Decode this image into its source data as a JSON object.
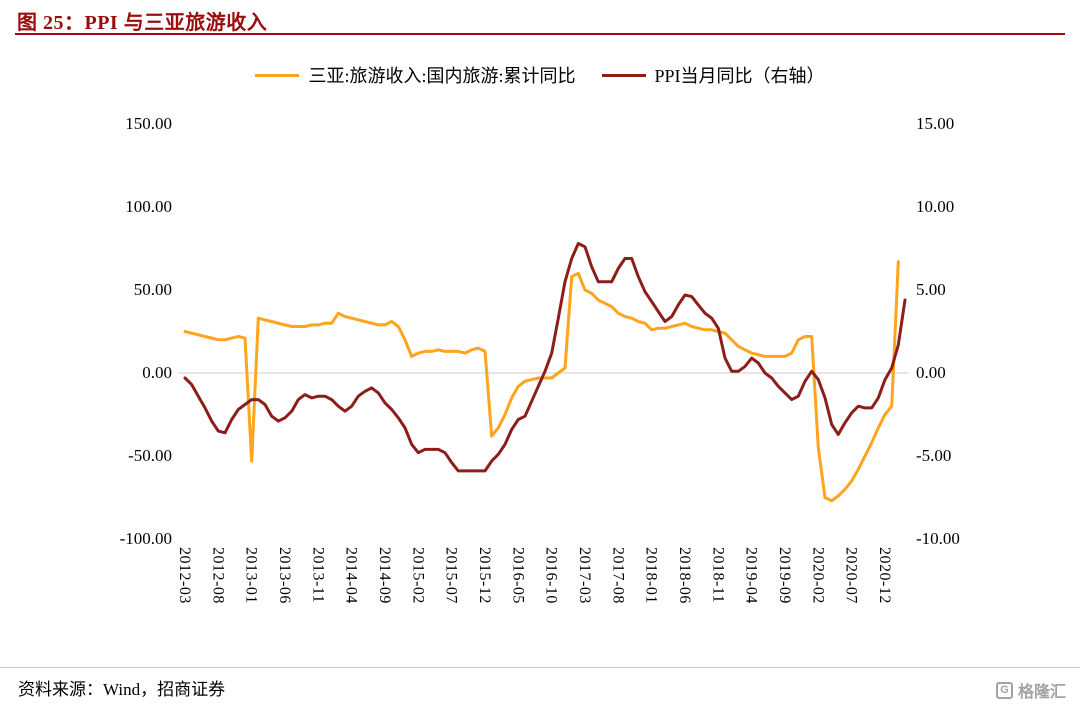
{
  "header": {
    "title": "图 25：PPI 与三亚旅游收入"
  },
  "colors": {
    "title_red": "#9B0D0D",
    "orange": "#FFA41C",
    "dark_red": "#8C1D18",
    "gridline": "#D6D6D6",
    "watermark_gray": "#A3A3A3"
  },
  "legend": [
    {
      "label": "三亚:旅游收入:国内旅游:累计同比",
      "color": "#FFA41C"
    },
    {
      "label": "PPI当月同比（右轴）",
      "color": "#8C1D18"
    }
  ],
  "footer": {
    "source": "资料来源：Wind，招商证券",
    "watermark_icon": "G",
    "watermark_text": "格隆汇"
  },
  "chart_data": {
    "type": "line",
    "title": "图 25：PPI 与三亚旅游收入",
    "x_start": "2012-03",
    "x_freq": "monthly",
    "x_tick_every": 5,
    "x_tick_labels": [
      "2012-03",
      "2012-08",
      "2013-01",
      "2013-06",
      "2013-11",
      "2014-04",
      "2014-09",
      "2015-02",
      "2015-07",
      "2015-12",
      "2016-05",
      "2016-10",
      "2017-03",
      "2017-08",
      "2018-01",
      "2018-06",
      "2018-11",
      "2019-04",
      "2019-09",
      "2020-02",
      "2020-07",
      "2020-12"
    ],
    "left_axis": {
      "ticks": [
        "150.00",
        "100.00",
        "50.00",
        "0.00",
        "-50.00",
        "-100.00"
      ],
      "min": -100,
      "max": 150
    },
    "right_axis": {
      "ticks": [
        "15.00",
        "10.00",
        "5.00",
        "0.00",
        "-5.00",
        "-10.00"
      ],
      "min": -10,
      "max": 15
    },
    "gridlines": "zero-line-only",
    "legend_position": "top-center",
    "series": [
      {
        "name": "三亚:旅游收入:国内旅游:累计同比",
        "axis": "left",
        "color": "#FFA41C",
        "values": [
          25,
          24,
          23,
          22,
          21,
          20,
          20,
          21,
          22,
          21,
          -53,
          33,
          32,
          31,
          30,
          29,
          28,
          28,
          28,
          29,
          29,
          30,
          30,
          36,
          34,
          33,
          32,
          31,
          30,
          29,
          29,
          31,
          28,
          20,
          10,
          12,
          13,
          13,
          14,
          13,
          13,
          13,
          12,
          14,
          15,
          13,
          -38,
          -33,
          -25,
          -15,
          -8,
          -5,
          -4,
          -3,
          -3,
          -3,
          0,
          3,
          58,
          60,
          50,
          48,
          44,
          42,
          40,
          36,
          34,
          33,
          31,
          30,
          26,
          27,
          27,
          28,
          29,
          30,
          28,
          27,
          26,
          26,
          25,
          24,
          20,
          16,
          14,
          12,
          11,
          10,
          10,
          10,
          10,
          12,
          20,
          22,
          22,
          -45,
          -75,
          -77,
          -74,
          -70,
          -65,
          -58,
          -50,
          -42,
          -33,
          -25,
          -20,
          67
        ]
      },
      {
        "name": "PPI当月同比（右轴）",
        "axis": "right",
        "color": "#8C1D18",
        "values": [
          -0.3,
          -0.7,
          -1.4,
          -2.1,
          -2.9,
          -3.5,
          -3.6,
          -2.8,
          -2.2,
          -1.9,
          -1.6,
          -1.6,
          -1.9,
          -2.6,
          -2.9,
          -2.7,
          -2.3,
          -1.6,
          -1.3,
          -1.5,
          -1.4,
          -1.4,
          -1.6,
          -2.0,
          -2.3,
          -2.0,
          -1.4,
          -1.1,
          -0.9,
          -1.2,
          -1.8,
          -2.2,
          -2.7,
          -3.3,
          -4.3,
          -4.8,
          -4.6,
          -4.6,
          -4.6,
          -4.8,
          -5.4,
          -5.9,
          -5.9,
          -5.9,
          -5.9,
          -5.9,
          -5.3,
          -4.9,
          -4.3,
          -3.4,
          -2.8,
          -2.6,
          -1.7,
          -0.8,
          0.1,
          1.2,
          3.3,
          5.5,
          6.9,
          7.8,
          7.6,
          6.4,
          5.5,
          5.5,
          5.5,
          6.3,
          6.9,
          6.9,
          5.8,
          4.9,
          4.3,
          3.7,
          3.1,
          3.4,
          4.1,
          4.7,
          4.6,
          4.1,
          3.6,
          3.3,
          2.7,
          0.9,
          0.1,
          0.1,
          0.4,
          0.9,
          0.6,
          0.0,
          -0.3,
          -0.8,
          -1.2,
          -1.6,
          -1.4,
          -0.5,
          0.1,
          -0.4,
          -1.5,
          -3.1,
          -3.7,
          -3.0,
          -2.4,
          -2.0,
          -2.1,
          -2.1,
          -1.5,
          -0.4,
          0.3,
          1.7,
          4.4
        ]
      }
    ]
  }
}
